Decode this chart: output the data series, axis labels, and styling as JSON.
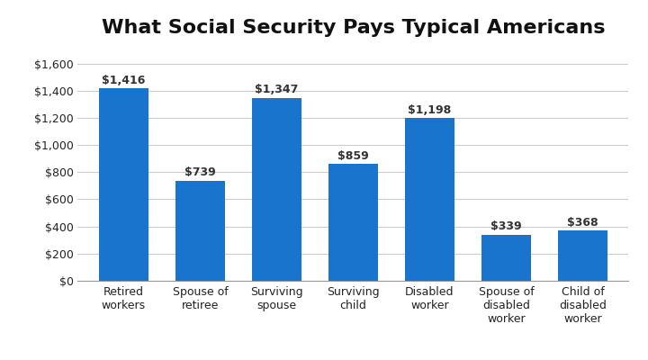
{
  "title": "What Social Security Pays Typical Americans",
  "categories": [
    "Retired\nworkers",
    "Spouse of\nretiree",
    "Surviving\nspouse",
    "Surviving\nchild",
    "Disabled\nworker",
    "Spouse of\ndisabled\nworker",
    "Child of\ndisabled\nworker"
  ],
  "values": [
    1416,
    739,
    1347,
    859,
    1198,
    339,
    368
  ],
  "labels": [
    "$1,416",
    "$739",
    "$1,347",
    "$859",
    "$1,198",
    "$339",
    "$368"
  ],
  "bar_color": "#1874CD",
  "background_color": "#ffffff",
  "plot_bg_color": "#ffffff",
  "grid_color": "#cccccc",
  "ylim": [
    0,
    1750
  ],
  "yticks": [
    0,
    200,
    400,
    600,
    800,
    1000,
    1200,
    1400,
    1600
  ],
  "ytick_labels": [
    "$0",
    "$200",
    "$400",
    "$600",
    "$800",
    "$1,000",
    "$1,200",
    "$1,400",
    "$1,600"
  ],
  "title_fontsize": 16,
  "label_fontsize": 9,
  "tick_fontsize": 9,
  "bar_width": 0.65
}
